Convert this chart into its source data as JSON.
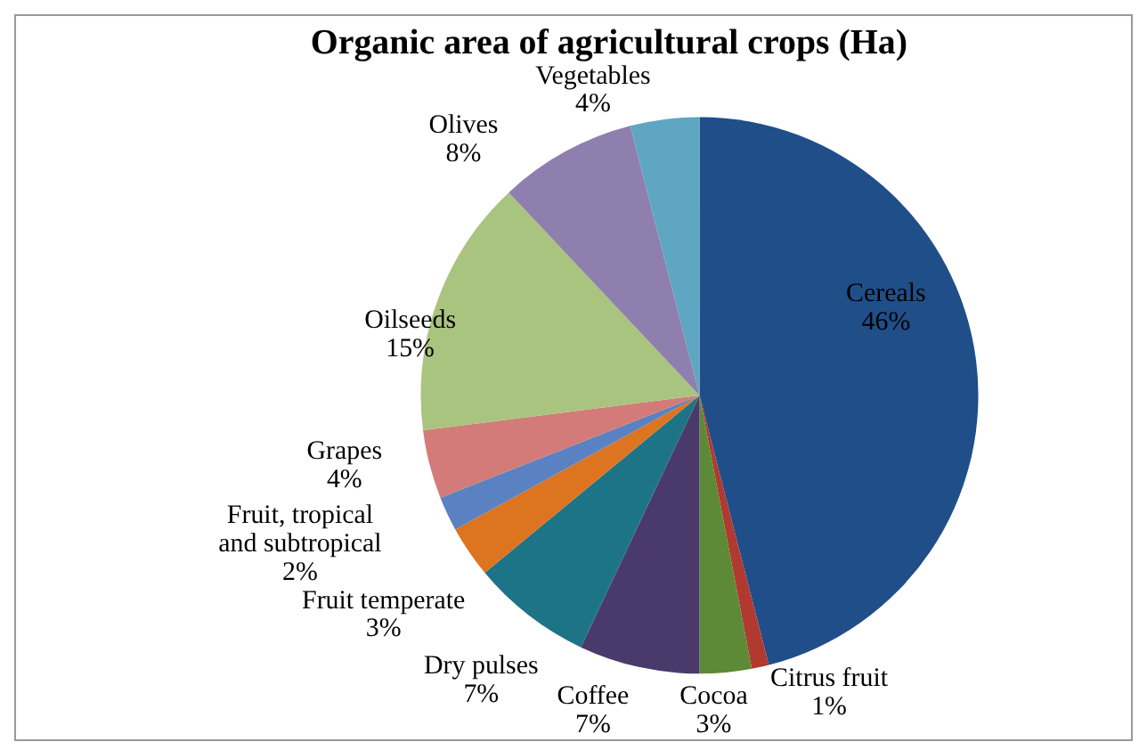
{
  "chart_data": {
    "type": "pie",
    "title": "Organic area of agricultural crops (Ha)",
    "categories": [
      "Cereals",
      "Citrus fruit",
      "Cocoa",
      "Coffee",
      "Dry pulses",
      "Fruit temperate",
      "Fruit, tropical and subtropical",
      "Grapes",
      "Oilseeds",
      "Olives",
      "Vegetables"
    ],
    "values": [
      46,
      1,
      3,
      7,
      7,
      3,
      2,
      4,
      15,
      8,
      4
    ],
    "colors": [
      "#1f4e89",
      "#b03a30",
      "#5c8a36",
      "#4a3a6c",
      "#1d7487",
      "#dc7420",
      "#5a82c2",
      "#d27b78",
      "#a9c47f",
      "#8e7fae",
      "#5ea6c2"
    ],
    "value_labels": [
      "46%",
      "1%",
      "3%",
      "7%",
      "7%",
      "3%",
      "2%",
      "4%",
      "15%",
      "8%",
      "4%"
    ],
    "legend": false
  }
}
